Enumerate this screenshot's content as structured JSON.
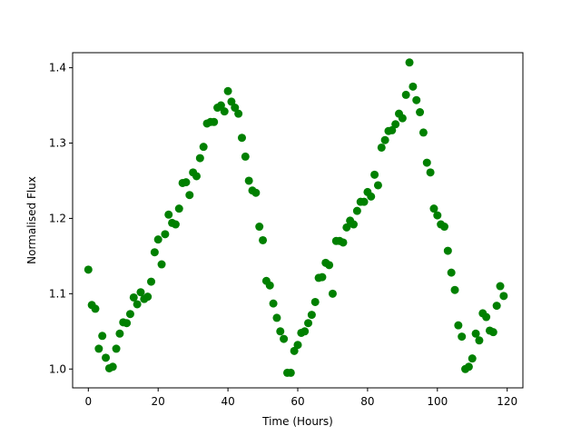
{
  "chart_data": {
    "type": "scatter",
    "title": "",
    "xlabel": "Time (Hours)",
    "ylabel": "Normalised Flux",
    "xlim": [
      -4.5,
      124.5
    ],
    "ylim": [
      0.975,
      1.42
    ],
    "xticks": [
      0,
      20,
      40,
      60,
      80,
      100,
      120
    ],
    "yticks": [
      1.0,
      1.1,
      1.2,
      1.3,
      1.4
    ],
    "ytick_labels": [
      "1.0",
      "1.1",
      "1.2",
      "1.3",
      "1.4"
    ],
    "grid": false,
    "legend": "none",
    "marker_color": "#008000",
    "series": [
      {
        "x": [
          0,
          1,
          2,
          3,
          4,
          5,
          6,
          7,
          8,
          9,
          10,
          11,
          12,
          13,
          14,
          15,
          16,
          17,
          18,
          19,
          20,
          21,
          22,
          23,
          24,
          25,
          26,
          27,
          28,
          29,
          30,
          31,
          32,
          33,
          34,
          35,
          36,
          37,
          38,
          39,
          40,
          41,
          42,
          43,
          44,
          45,
          46,
          47,
          48,
          49,
          50,
          51,
          52,
          53,
          54,
          55,
          56,
          57,
          58,
          59,
          60,
          61,
          62,
          63,
          64,
          65,
          66,
          67,
          68,
          69,
          70,
          71,
          72,
          73,
          74,
          75,
          76,
          77,
          78,
          79,
          80,
          81,
          82,
          83,
          84,
          85,
          86,
          87,
          88,
          89,
          90,
          91,
          92,
          93,
          94,
          95,
          96,
          97,
          98,
          99,
          100,
          101,
          102,
          103,
          104,
          105,
          106,
          107,
          108,
          109,
          110,
          111,
          112,
          113,
          114,
          115,
          116,
          117,
          118,
          119
        ],
        "y": [
          1.132,
          1.085,
          1.08,
          1.027,
          1.044,
          1.015,
          1.001,
          1.003,
          1.027,
          1.047,
          1.062,
          1.061,
          1.073,
          1.095,
          1.086,
          1.102,
          1.093,
          1.096,
          1.116,
          1.155,
          1.172,
          1.139,
          1.179,
          1.205,
          1.194,
          1.192,
          1.213,
          1.247,
          1.248,
          1.231,
          1.261,
          1.256,
          1.28,
          1.295,
          1.326,
          1.328,
          1.328,
          1.347,
          1.35,
          1.342,
          1.369,
          1.355,
          1.347,
          1.339,
          1.307,
          1.282,
          1.25,
          1.237,
          1.234,
          1.189,
          1.171,
          1.117,
          1.111,
          1.087,
          1.068,
          1.05,
          1.04,
          0.995,
          0.995,
          1.024,
          1.032,
          1.048,
          1.05,
          1.061,
          1.072,
          1.089,
          1.121,
          1.122,
          1.141,
          1.138,
          1.1,
          1.17,
          1.17,
          1.168,
          1.188,
          1.197,
          1.192,
          1.21,
          1.222,
          1.222,
          1.235,
          1.229,
          1.258,
          1.244,
          1.294,
          1.304,
          1.316,
          1.317,
          1.325,
          1.339,
          1.333,
          1.364,
          1.407,
          1.375,
          1.357,
          1.341,
          1.314,
          1.274,
          1.261,
          1.213,
          1.204,
          1.192,
          1.189,
          1.157,
          1.128,
          1.105,
          1.058,
          1.043,
          1.0,
          1.003,
          1.014,
          1.047,
          1.038,
          1.074,
          1.069,
          1.051,
          1.049,
          1.084,
          1.11,
          1.097
        ]
      }
    ]
  }
}
